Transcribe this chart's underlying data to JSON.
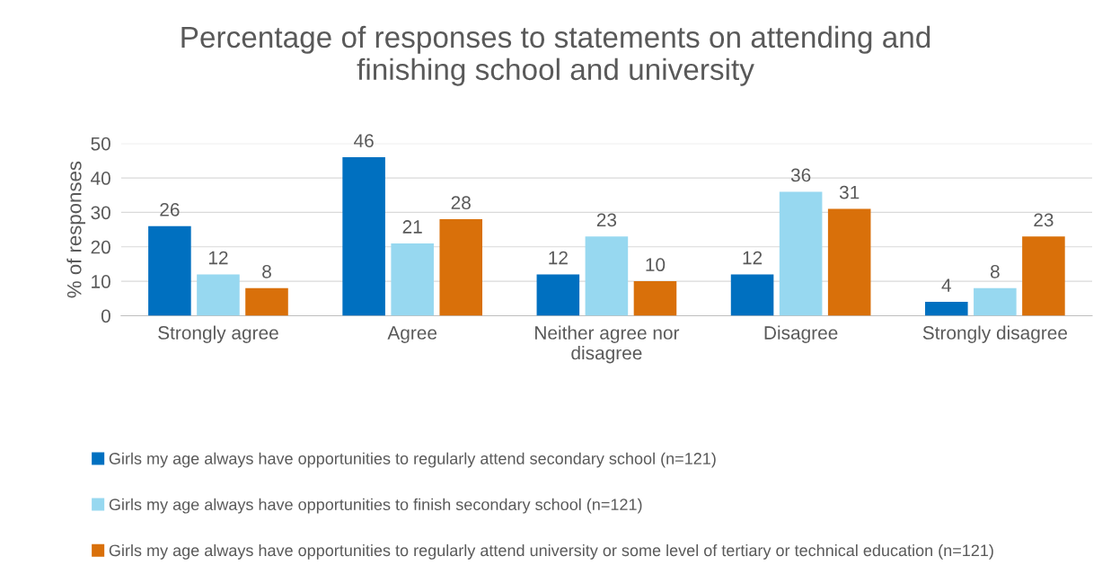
{
  "chart_data": {
    "type": "bar",
    "title": "Percentage of responses to statements on attending and\nfinishing school and university",
    "ylabel": "% of responses",
    "categories": [
      "Strongly agree",
      "Agree",
      "Neither agree nor\ndisagree",
      "Disagree",
      "Strongly disagree"
    ],
    "series": [
      {
        "name": "Girls my age always have opportunities to regularly attend secondary school (n=121)",
        "color": "#0070c0",
        "values": [
          26,
          46,
          12,
          12,
          4
        ]
      },
      {
        "name": "Girls my age always have opportunities to finish secondary school (n=121)",
        "color": "#97d8f0",
        "values": [
          12,
          21,
          23,
          36,
          8
        ]
      },
      {
        "name": "Girls my age always have opportunities to regularly attend university or some level of tertiary or technical education (n=121)",
        "color": "#d9700a",
        "values": [
          8,
          28,
          10,
          31,
          23
        ]
      }
    ],
    "ylim": [
      0,
      50
    ],
    "yticks": [
      0,
      10,
      20,
      30,
      40,
      50
    ],
    "grid": "y",
    "legend": "bottom",
    "data_labels": true
  }
}
